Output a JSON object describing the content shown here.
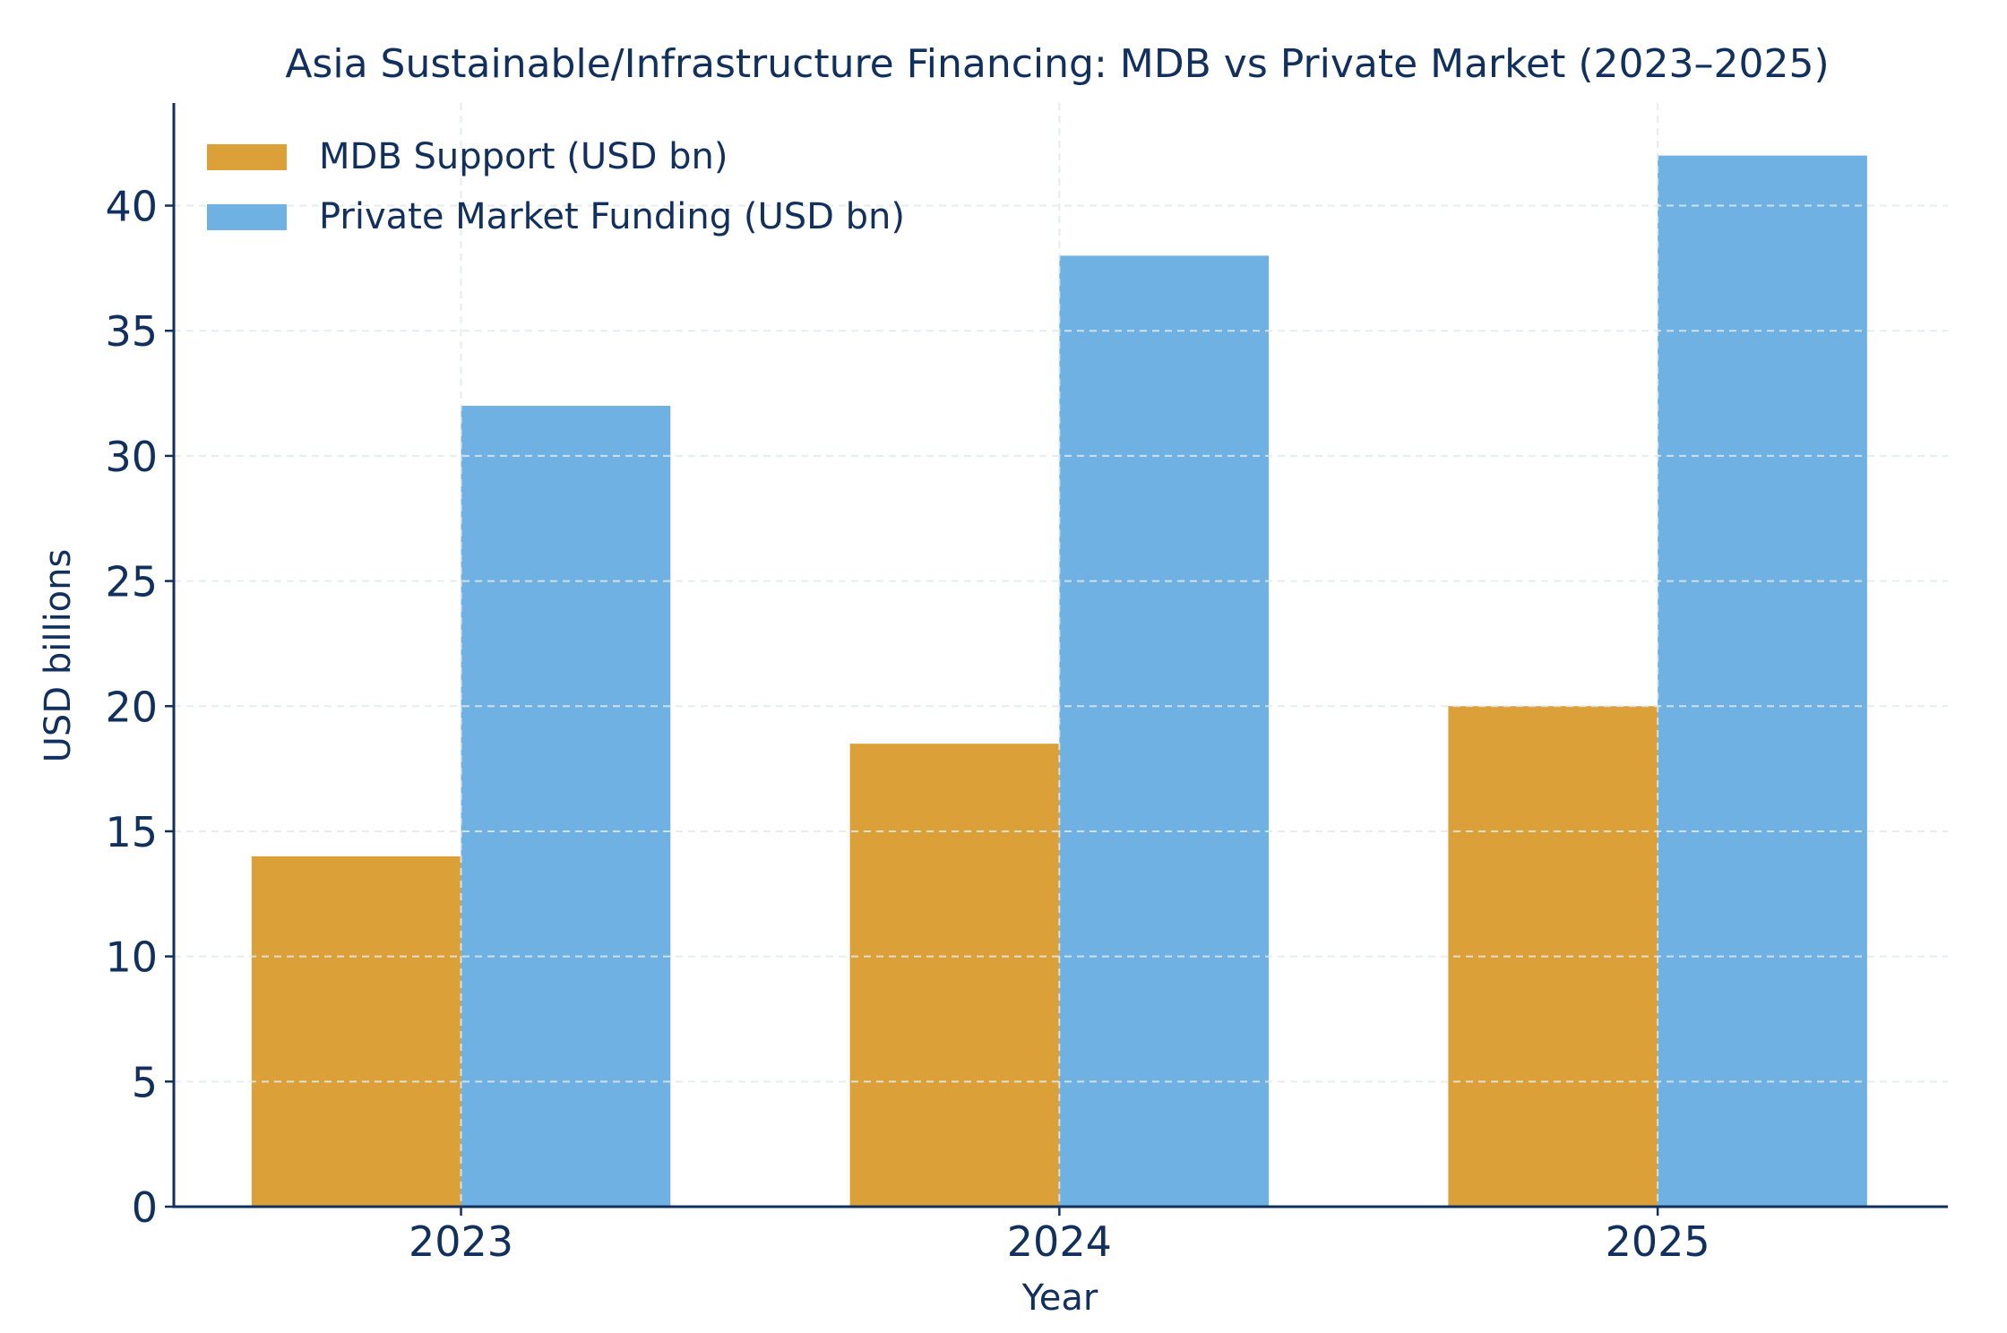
{
  "chart_data": {
    "type": "bar",
    "title": "Asia Sustainable/Infrastructure Financing: MDB vs Private Market (2023–2025)",
    "xlabel": "Year",
    "ylabel": "USD billions",
    "categories": [
      "2023",
      "2024",
      "2025"
    ],
    "series": [
      {
        "name": "MDB Support (USD bn)",
        "values": [
          14,
          18.5,
          20
        ],
        "color": "#DBA138"
      },
      {
        "name": "Private Market Funding (USD bn)",
        "values": [
          32,
          38,
          42
        ],
        "color": "#6FB1E2"
      }
    ],
    "ylim": [
      0,
      44.1
    ],
    "yticks": [
      0,
      5,
      10,
      15,
      20,
      25,
      30,
      35,
      40
    ],
    "grid": true,
    "legend_position": "top-left",
    "text_color": "#12305E"
  }
}
